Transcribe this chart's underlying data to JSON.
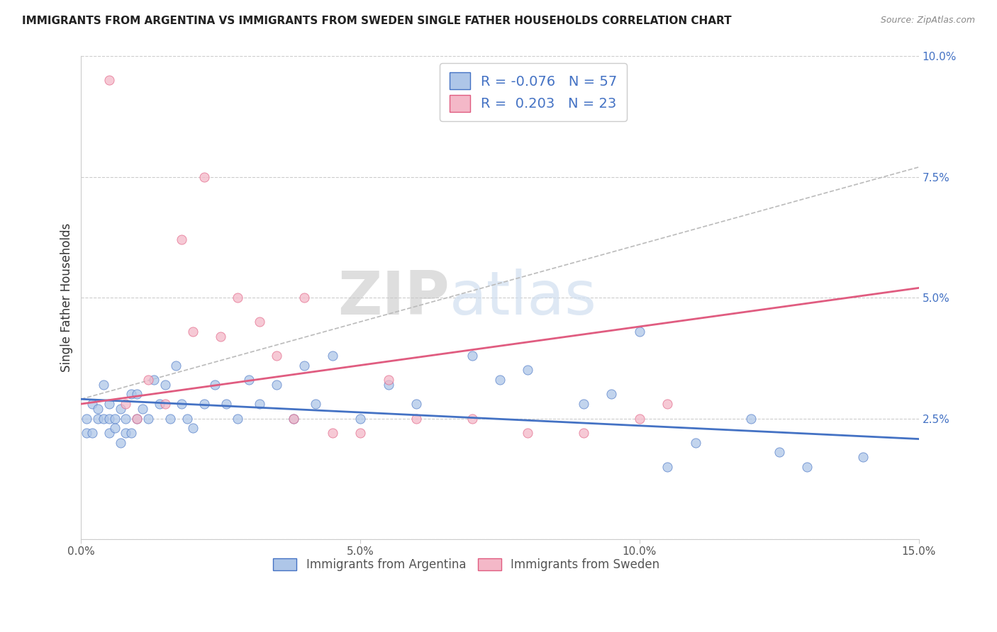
{
  "title": "IMMIGRANTS FROM ARGENTINA VS IMMIGRANTS FROM SWEDEN SINGLE FATHER HOUSEHOLDS CORRELATION CHART",
  "source": "Source: ZipAtlas.com",
  "ylabel": "Single Father Households",
  "xlim": [
    0,
    0.15
  ],
  "ylim": [
    0,
    0.1
  ],
  "xticks": [
    0.0,
    0.05,
    0.1,
    0.15
  ],
  "xtick_labels": [
    "0.0%",
    "5.0%",
    "10.0%",
    "15.0%"
  ],
  "yticks": [
    0.0,
    0.025,
    0.05,
    0.075,
    0.1
  ],
  "ytick_labels": [
    "",
    "2.5%",
    "5.0%",
    "7.5%",
    "10.0%"
  ],
  "argentina_R": -0.076,
  "argentina_N": 57,
  "sweden_R": 0.203,
  "sweden_N": 23,
  "argentina_color": "#aec6e8",
  "sweden_color": "#f4b8c8",
  "argentina_line_color": "#4472c4",
  "sweden_line_color": "#e05c80",
  "gray_line_color": "#bbbbbb",
  "watermark_color": "#d0dff0",
  "legend_text_color": "#4472c4",
  "title_color": "#222222",
  "source_color": "#888888",
  "ylabel_color": "#333333",
  "tick_color": "#555555",
  "grid_color": "#cccccc",
  "sweden_x": [
    0.005,
    0.008,
    0.01,
    0.012,
    0.015,
    0.018,
    0.02,
    0.022,
    0.025,
    0.028,
    0.032,
    0.035,
    0.038,
    0.04,
    0.045,
    0.05,
    0.055,
    0.06,
    0.07,
    0.08,
    0.09,
    0.1,
    0.105
  ],
  "sweden_y": [
    0.095,
    0.028,
    0.025,
    0.033,
    0.028,
    0.062,
    0.043,
    0.075,
    0.042,
    0.05,
    0.045,
    0.038,
    0.025,
    0.05,
    0.022,
    0.022,
    0.033,
    0.025,
    0.025,
    0.022,
    0.022,
    0.025,
    0.028
  ],
  "argentina_x": [
    0.001,
    0.001,
    0.002,
    0.002,
    0.003,
    0.003,
    0.004,
    0.004,
    0.005,
    0.005,
    0.005,
    0.006,
    0.006,
    0.007,
    0.007,
    0.008,
    0.008,
    0.009,
    0.009,
    0.01,
    0.01,
    0.011,
    0.012,
    0.013,
    0.014,
    0.015,
    0.016,
    0.017,
    0.018,
    0.019,
    0.02,
    0.022,
    0.024,
    0.026,
    0.028,
    0.03,
    0.032,
    0.035,
    0.038,
    0.04,
    0.042,
    0.045,
    0.05,
    0.055,
    0.06,
    0.07,
    0.075,
    0.08,
    0.09,
    0.095,
    0.1,
    0.105,
    0.11,
    0.12,
    0.125,
    0.13,
    0.14
  ],
  "argentina_y": [
    0.025,
    0.022,
    0.028,
    0.022,
    0.027,
    0.025,
    0.032,
    0.025,
    0.025,
    0.022,
    0.028,
    0.025,
    0.023,
    0.02,
    0.027,
    0.022,
    0.025,
    0.03,
    0.022,
    0.025,
    0.03,
    0.027,
    0.025,
    0.033,
    0.028,
    0.032,
    0.025,
    0.036,
    0.028,
    0.025,
    0.023,
    0.028,
    0.032,
    0.028,
    0.025,
    0.033,
    0.028,
    0.032,
    0.025,
    0.036,
    0.028,
    0.038,
    0.025,
    0.032,
    0.028,
    0.038,
    0.033,
    0.035,
    0.028,
    0.03,
    0.043,
    0.015,
    0.02,
    0.025,
    0.018,
    0.015,
    0.017
  ]
}
